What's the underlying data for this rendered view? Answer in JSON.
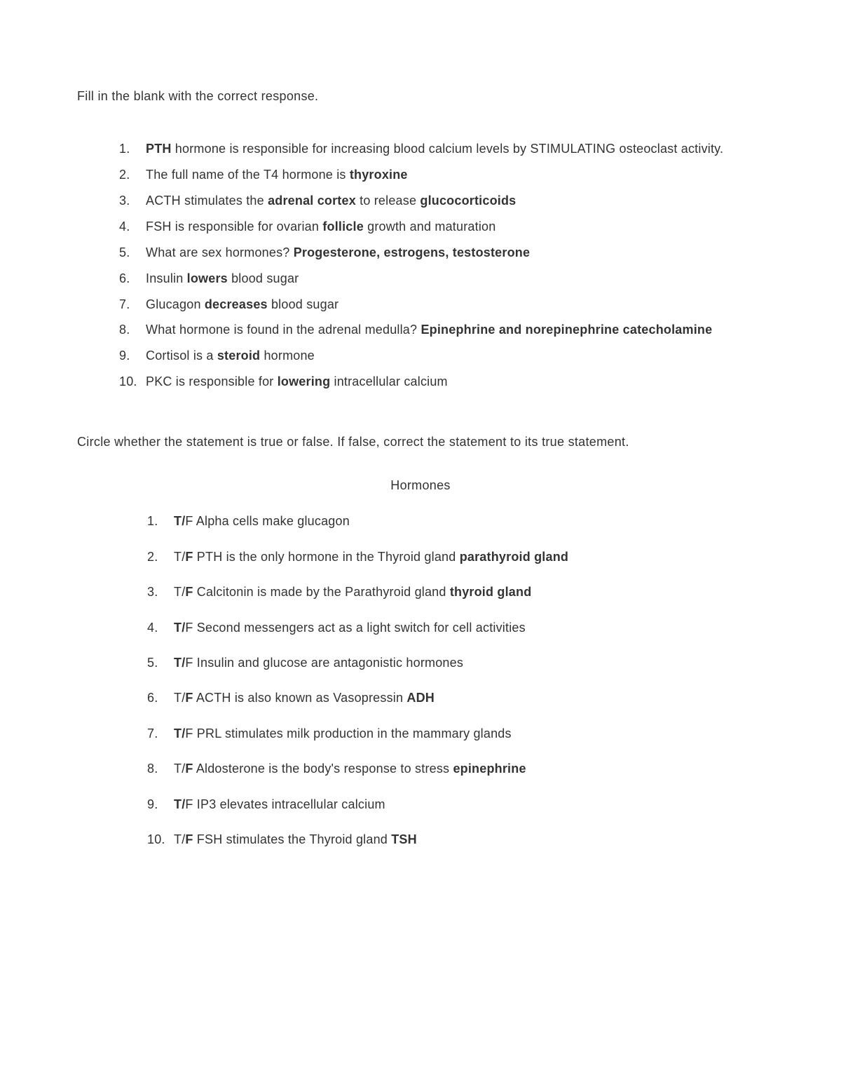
{
  "fillBlank": {
    "intro": "Fill in the blank with the correct response.",
    "items": [
      {
        "num": "1.",
        "html": "<b>PTH</b> hormone is responsible for increasing blood calcium levels by STIMULATING osteoclast activity."
      },
      {
        "num": "2.",
        "html": "The full name of the T4 hormone is <b>thyroxine</b>"
      },
      {
        "num": "3.",
        "html": "ACTH stimulates the <b>adrenal cortex</b> to release <b>glucocorticoids</b>"
      },
      {
        "num": "4.",
        "html": "FSH is responsible for ovarian <b>follicle</b> growth and maturation"
      },
      {
        "num": "5.",
        "html": "What are sex hormones? <b>Progesterone, estrogens, testosterone</b>"
      },
      {
        "num": "6.",
        "html": "Insulin <b>lowers</b> blood sugar"
      },
      {
        "num": "7.",
        "html": "Glucagon <b>decreases</b> blood sugar"
      },
      {
        "num": "8.",
        "html": "What hormone is found in the adrenal medulla? <b>Epinephrine and norepinephrine catecholamine</b>"
      },
      {
        "num": "9.",
        "html": "Cortisol is a <b>steroid</b> hormone"
      },
      {
        "num": "10.",
        "html": "PKC is responsible for <b>lowering</b> intracellular calcium"
      }
    ]
  },
  "trueFalse": {
    "intro": "Circle whether the statement is true or false. If false, correct the statement to its true statement.",
    "title": "Hormones",
    "items": [
      {
        "num": "1.",
        "html": "<b>T/</b>F Alpha cells make glucagon"
      },
      {
        "num": "2.",
        "html": "T/<b>F</b> PTH is the only hormone in the Thyroid gland <b>parathyroid gland</b>"
      },
      {
        "num": "3.",
        "html": "T/<b>F</b> Calcitonin is made by the Parathyroid gland <b>thyroid gland</b>"
      },
      {
        "num": "4.",
        "html": "<b>T/</b>F Second messengers act as a light switch for cell activities"
      },
      {
        "num": "5.",
        "html": "<b>T/</b>F Insulin and glucose are antagonistic hormones"
      },
      {
        "num": "6.",
        "html": "T/<b>F</b> ACTH is also known as Vasopressin <b>ADH</b>"
      },
      {
        "num": "7.",
        "html": "<b>T/</b>F PRL stimulates milk production in the mammary glands"
      },
      {
        "num": "8.",
        "html": "T/<b>F</b> Aldosterone is the body's response to stress <b>epinephrine</b>"
      },
      {
        "num": "9.",
        "html": "<b>T/</b>F IP3 elevates intracellular calcium"
      },
      {
        "num": "10.",
        "html": "T/<b>F</b> FSH stimulates the Thyroid gland <b>TSH</b>"
      }
    ]
  },
  "colors": {
    "text": "#333333",
    "background": "#ffffff"
  },
  "typography": {
    "fontFamily": "Arial",
    "fontSize": 18,
    "lineHeight": 1.9
  }
}
